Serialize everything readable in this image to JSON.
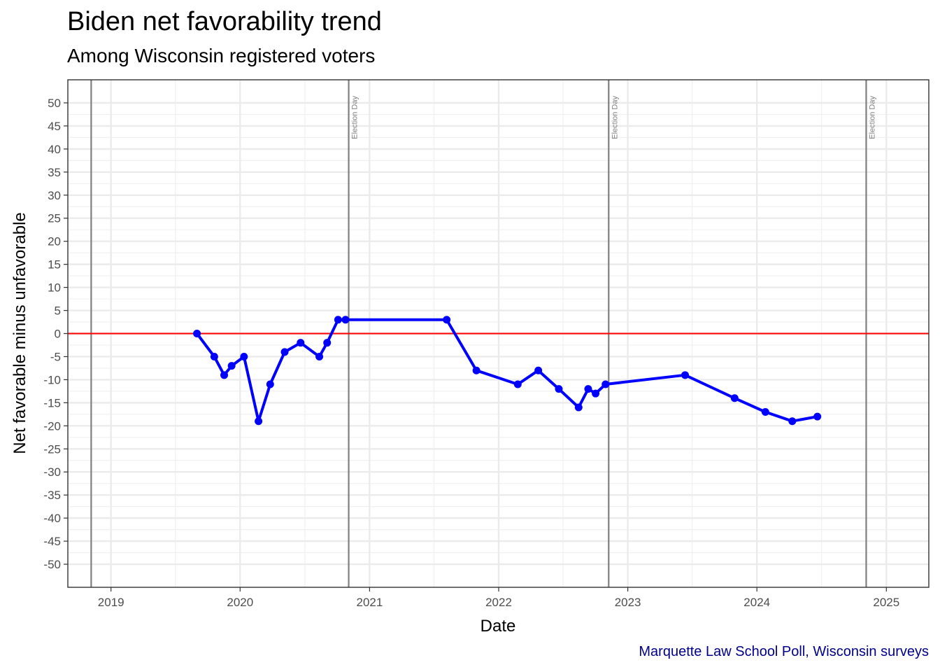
{
  "title": "Biden net favorability trend",
  "subtitle": "Among Wisconsin registered voters",
  "caption": "Marquette Law School Poll, Wisconsin surveys",
  "chart_data": {
    "type": "line",
    "xlabel": "Date",
    "ylabel": "Net favorable minus unfavorable",
    "xlim": [
      "2018-09-01",
      "2025-05-01"
    ],
    "ylim": [
      -55,
      55
    ],
    "x_ticks": [
      "2019",
      "2020",
      "2021",
      "2022",
      "2023",
      "2024",
      "2025"
    ],
    "y_ticks": [
      50,
      45,
      40,
      35,
      30,
      25,
      20,
      15,
      10,
      5,
      0,
      -5,
      -10,
      -15,
      -20,
      -25,
      -30,
      -35,
      -40,
      -45,
      -50
    ],
    "grid": true,
    "legend": "none",
    "series": [
      {
        "color": "#0000ff",
        "points": [
          {
            "x": "2019-09-01",
            "y": 0
          },
          {
            "x": "2019-10-20",
            "y": -5
          },
          {
            "x": "2019-11-17",
            "y": -9
          },
          {
            "x": "2019-12-08",
            "y": -7
          },
          {
            "x": "2020-01-12",
            "y": -5
          },
          {
            "x": "2020-02-22",
            "y": -19
          },
          {
            "x": "2020-03-26",
            "y": -11
          },
          {
            "x": "2020-05-06",
            "y": -4
          },
          {
            "x": "2020-06-20",
            "y": -2
          },
          {
            "x": "2020-08-12",
            "y": -5
          },
          {
            "x": "2020-09-03",
            "y": -2
          },
          {
            "x": "2020-10-04",
            "y": 3
          },
          {
            "x": "2020-10-25",
            "y": 3
          },
          {
            "x": "2021-08-07",
            "y": 3
          },
          {
            "x": "2021-10-30",
            "y": -8
          },
          {
            "x": "2022-02-24",
            "y": -11
          },
          {
            "x": "2022-04-23",
            "y": -8
          },
          {
            "x": "2022-06-20",
            "y": -12
          },
          {
            "x": "2022-08-15",
            "y": -16
          },
          {
            "x": "2022-09-11",
            "y": -12
          },
          {
            "x": "2022-10-02",
            "y": -13
          },
          {
            "x": "2022-10-30",
            "y": -11
          },
          {
            "x": "2023-06-12",
            "y": -9
          },
          {
            "x": "2023-10-30",
            "y": -14
          },
          {
            "x": "2024-01-25",
            "y": -17
          },
          {
            "x": "2024-04-10",
            "y": -19
          },
          {
            "x": "2024-06-20",
            "y": -18
          }
        ]
      }
    ],
    "reference_line": {
      "y": 0,
      "color": "#ff0000"
    },
    "event_lines": [
      {
        "x": "2018-11-06",
        "label": ""
      },
      {
        "x": "2020-11-03",
        "label": "Election Day"
      },
      {
        "x": "2022-11-08",
        "label": "Election Day"
      },
      {
        "x": "2024-11-05",
        "label": "Election Day"
      }
    ]
  }
}
